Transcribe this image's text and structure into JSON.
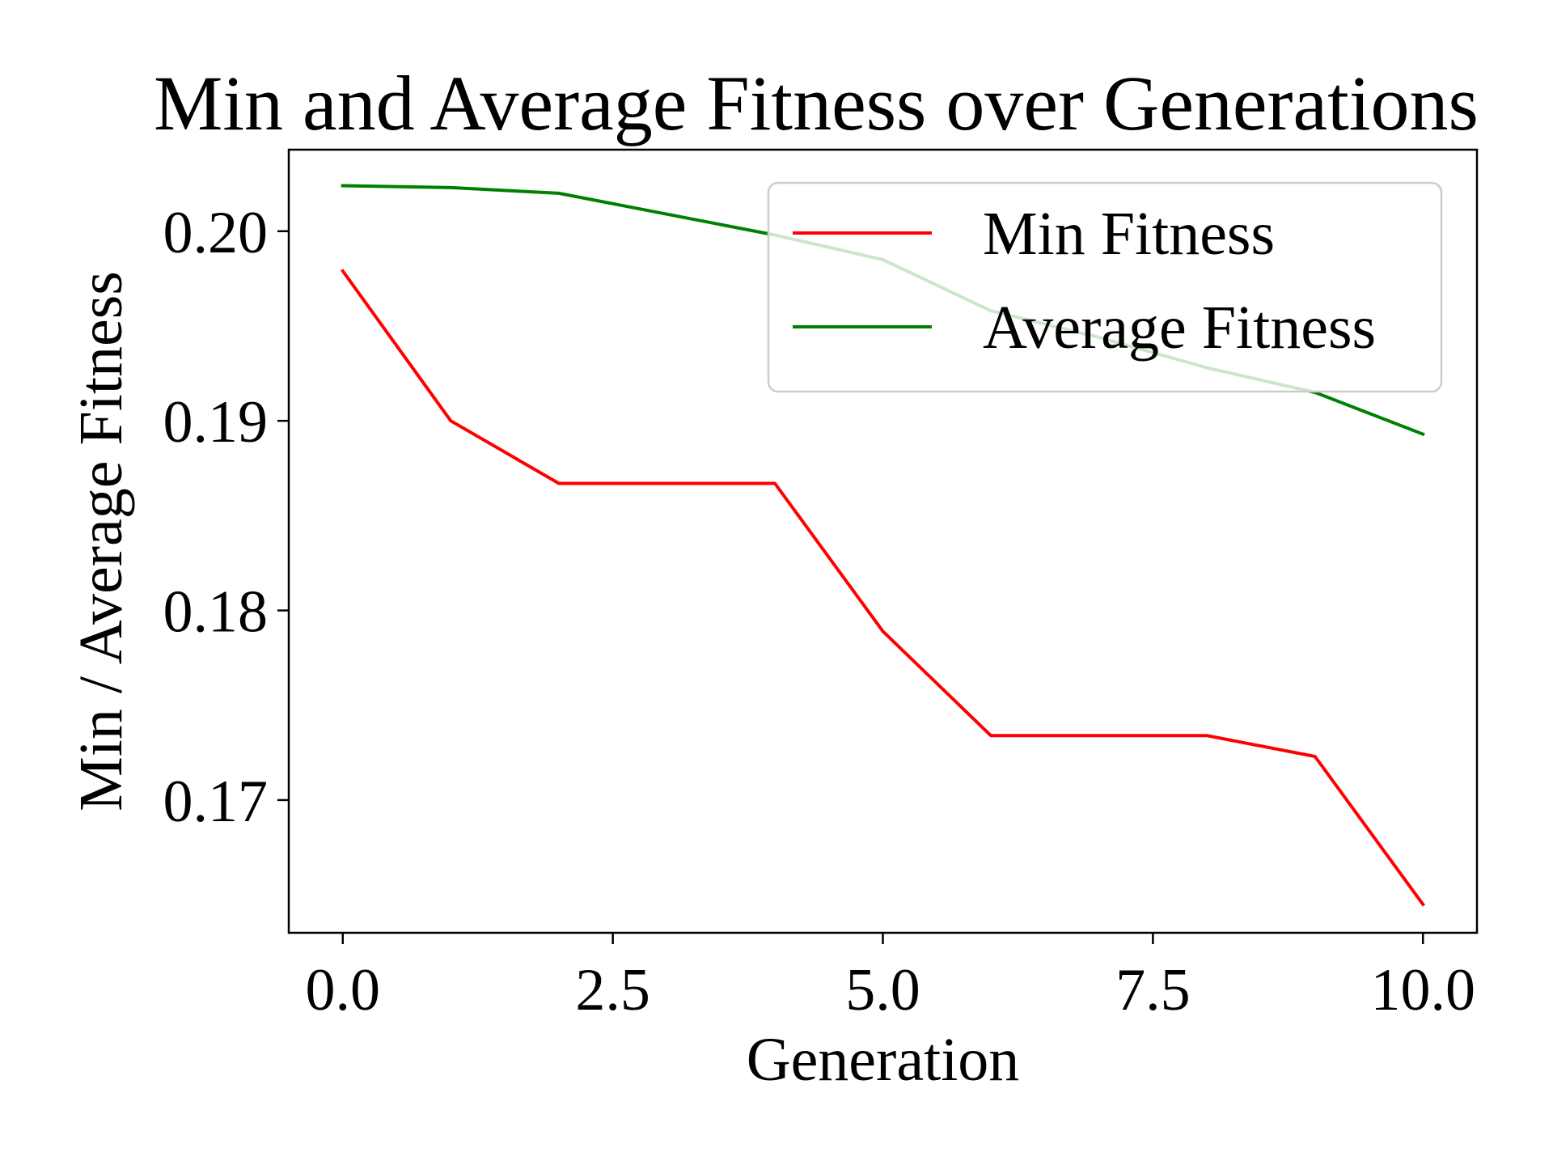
{
  "chart_data": {
    "type": "line",
    "title": "Min and Average Fitness over Generations",
    "xlabel": "Generation",
    "ylabel": "Min / Average Fitness",
    "xlim": [
      -0.5,
      10.5
    ],
    "ylim": [
      0.163,
      0.2043
    ],
    "xticks": [
      0.0,
      2.5,
      5.0,
      7.5,
      10.0
    ],
    "xtick_labels": [
      "0.0",
      "2.5",
      "5.0",
      "7.5",
      "10.0"
    ],
    "yticks": [
      0.17,
      0.18,
      0.19,
      0.2
    ],
    "ytick_labels": [
      "0.17",
      "0.18",
      "0.19",
      "0.20"
    ],
    "grid": false,
    "legend_position": "top-right",
    "x": [
      0,
      1,
      2,
      3,
      4,
      5,
      6,
      7,
      8,
      9,
      10
    ],
    "series": [
      {
        "name": "Min Fitness",
        "color": "#ff0000",
        "values": [
          0.1979,
          0.19,
          0.1867,
          0.1867,
          0.1867,
          0.1789,
          0.1734,
          0.1734,
          0.1734,
          0.1723,
          0.1645
        ]
      },
      {
        "name": "Average Fitness",
        "color": "#008000",
        "values": [
          0.2024,
          0.2023,
          0.202,
          0.2009,
          0.1998,
          0.1985,
          0.1958,
          0.1944,
          0.1928,
          0.1915,
          0.1893
        ]
      }
    ]
  }
}
